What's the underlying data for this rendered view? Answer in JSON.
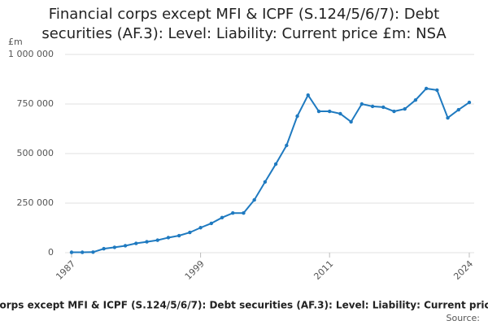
{
  "chart_data": {
    "type": "line",
    "title": "Financial corps except MFI & ICPF (S.124/5/6/7): Debt securities (AF.3): Level: Liability: Current price £m: NSA",
    "y_label": "£m",
    "source": "Source:",
    "color": "#1f7ac0",
    "grid": true,
    "x": [
      1987,
      1988,
      1989,
      1990,
      1991,
      1992,
      1993,
      1994,
      1995,
      1996,
      1997,
      1998,
      1999,
      2000,
      2001,
      2002,
      2003,
      2004,
      2005,
      2006,
      2007,
      2008,
      2009,
      2010,
      2011,
      2012,
      2013,
      2014,
      2015,
      2016,
      2017,
      2018,
      2019,
      2020,
      2021,
      2022,
      2023,
      2024
    ],
    "values": [
      2000,
      2000,
      3000,
      20000,
      27000,
      35000,
      47000,
      55000,
      63000,
      76000,
      86000,
      102000,
      126000,
      148000,
      177000,
      200000,
      200000,
      266000,
      357000,
      447000,
      541000,
      689000,
      795000,
      713000,
      713000,
      701000,
      660000,
      750000,
      738000,
      734000,
      713000,
      725000,
      770000,
      828000,
      820000,
      680000,
      721000,
      758000
    ],
    "xlim": [
      1987,
      2024
    ],
    "xticks": [
      1987,
      1999,
      2011,
      2024
    ],
    "ylim": [
      0,
      1000000
    ],
    "yticks": [
      0,
      {
        "value": 250000,
        "label": "250 000"
      },
      {
        "value": 500000,
        "label": "500 000"
      },
      {
        "value": 750000,
        "label": "750 000"
      },
      {
        "value": 1000000,
        "label": "1 000 000"
      }
    ]
  }
}
